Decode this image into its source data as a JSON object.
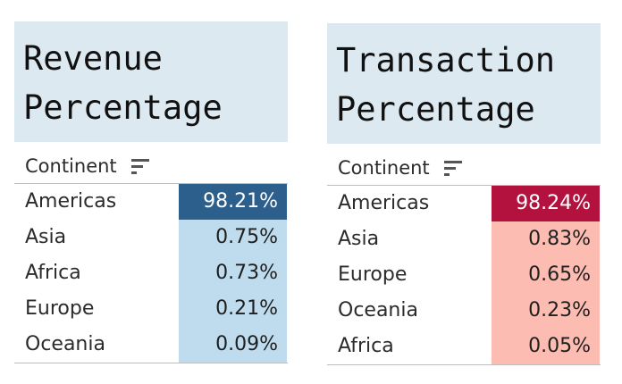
{
  "revenue": {
    "title_lines": [
      "Revenue",
      "Percentage"
    ],
    "column_header": "Continent",
    "highlight_color": "#2c5f8c",
    "highlight_text_color": "#ffffff",
    "cell_color": "#bedcee",
    "rows": [
      {
        "continent": "Americas",
        "value": "98.21%"
      },
      {
        "continent": "Asia",
        "value": "0.75%"
      },
      {
        "continent": "Africa",
        "value": "0.73%"
      },
      {
        "continent": "Europe",
        "value": "0.21%"
      },
      {
        "continent": "Oceania",
        "value": "0.09%"
      }
    ]
  },
  "transaction": {
    "title_lines": [
      "Transaction",
      "Percentage"
    ],
    "column_header": "Continent",
    "highlight_color": "#b2123d",
    "highlight_text_color": "#ffffff",
    "cell_color": "#fcbcb1",
    "rows": [
      {
        "continent": "Americas",
        "value": "98.24%"
      },
      {
        "continent": "Asia",
        "value": "0.83%"
      },
      {
        "continent": "Europe",
        "value": "0.65%"
      },
      {
        "continent": "Oceania",
        "value": "0.23%"
      },
      {
        "continent": "Africa",
        "value": "0.05%"
      }
    ]
  },
  "icons": {
    "sort": "sort-descending-icon"
  }
}
